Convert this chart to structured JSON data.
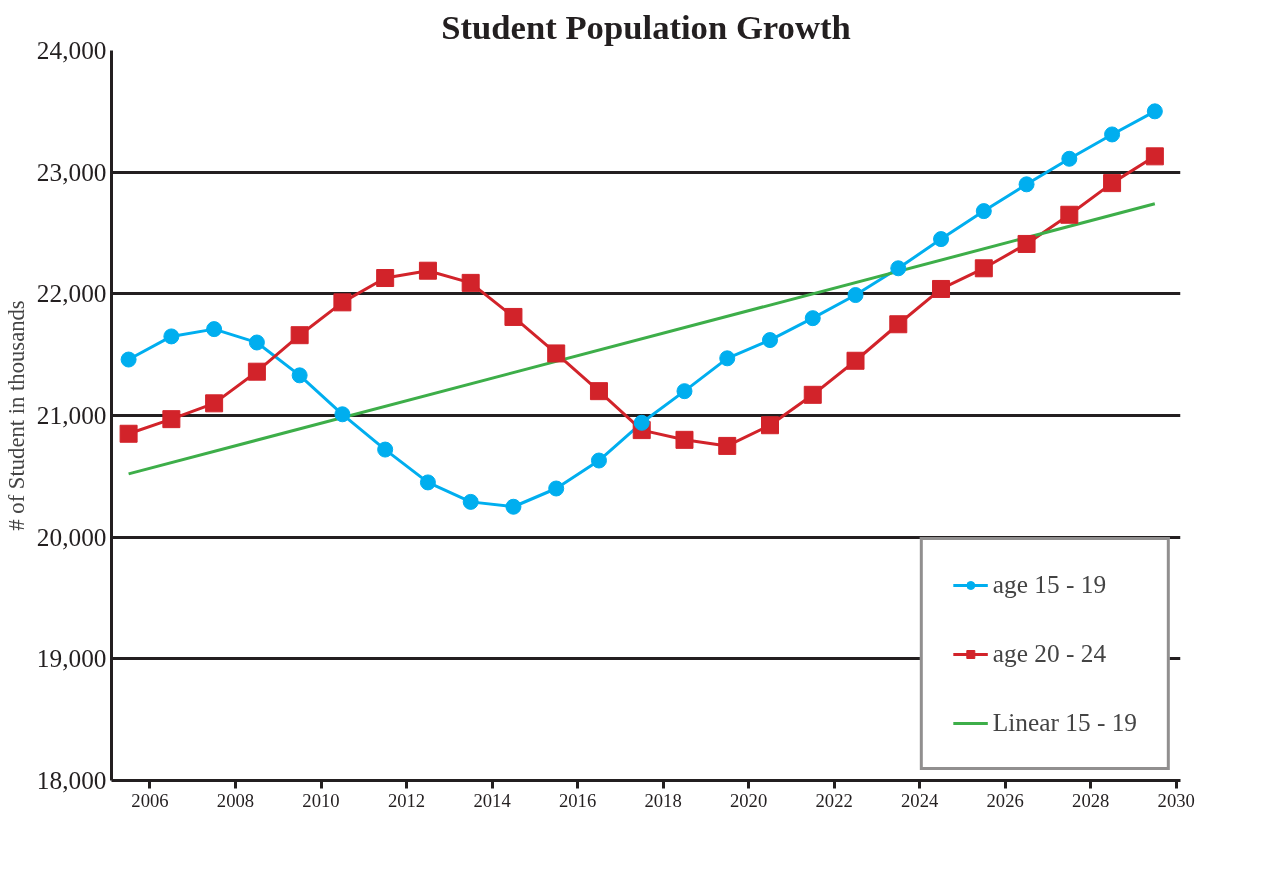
{
  "chart_data": {
    "type": "line",
    "title": "Student Population Growth",
    "ylabel": "# of Student in thousands",
    "x": [
      2005.5,
      2006.5,
      2007.5,
      2008.5,
      2009.5,
      2010.5,
      2011.5,
      2012.5,
      2013.5,
      2014.5,
      2015.5,
      2016.5,
      2017.5,
      2018.5,
      2019.5,
      2020.5,
      2021.5,
      2022.5,
      2023.5,
      2024.5,
      2025.5,
      2026.5,
      2027.5,
      2028.5,
      2029.5
    ],
    "series": [
      {
        "name": "age 15 - 19",
        "color": "#00aeef",
        "marker": "circle",
        "values": [
          21460,
          21650,
          21710,
          21600,
          21330,
          21010,
          20720,
          20450,
          20290,
          20250,
          20400,
          20630,
          20940,
          21200,
          21470,
          21620,
          21800,
          21990,
          22210,
          22450,
          22680,
          22900,
          23110,
          23310,
          23500
        ]
      },
      {
        "name": "age 20 - 24",
        "color": "#d2232a",
        "marker": "square",
        "values": [
          20850,
          20970,
          21100,
          21360,
          21660,
          21930,
          22130,
          22190,
          22090,
          21810,
          21510,
          21200,
          20880,
          20800,
          20750,
          20920,
          21170,
          21450,
          21750,
          22040,
          22210,
          22410,
          22650,
          22910,
          23130
        ]
      },
      {
        "name": "Linear 15 - 19",
        "color": "#3dae49",
        "marker": "none",
        "x": [
          2005.5,
          2029.5
        ],
        "values": [
          20520,
          22740
        ]
      }
    ],
    "xlim": [
      2005.1,
      2030.1
    ],
    "xticks": [
      2006,
      2008,
      2010,
      2012,
      2014,
      2016,
      2018,
      2020,
      2022,
      2024,
      2026,
      2028,
      2030
    ],
    "ylim": [
      18000,
      24000
    ],
    "yticks": [
      {
        "value": 18000,
        "label": "18,000"
      },
      {
        "value": 19000,
        "label": "19,000"
      },
      {
        "value": 20000,
        "label": "20,000"
      },
      {
        "value": 21000,
        "label": "21,000"
      },
      {
        "value": 22000,
        "label": "22,000"
      },
      {
        "value": 23000,
        "label": "23,000"
      },
      {
        "value": 24000,
        "label": "24,000"
      }
    ],
    "grid": "y",
    "legend": "bottom right"
  }
}
